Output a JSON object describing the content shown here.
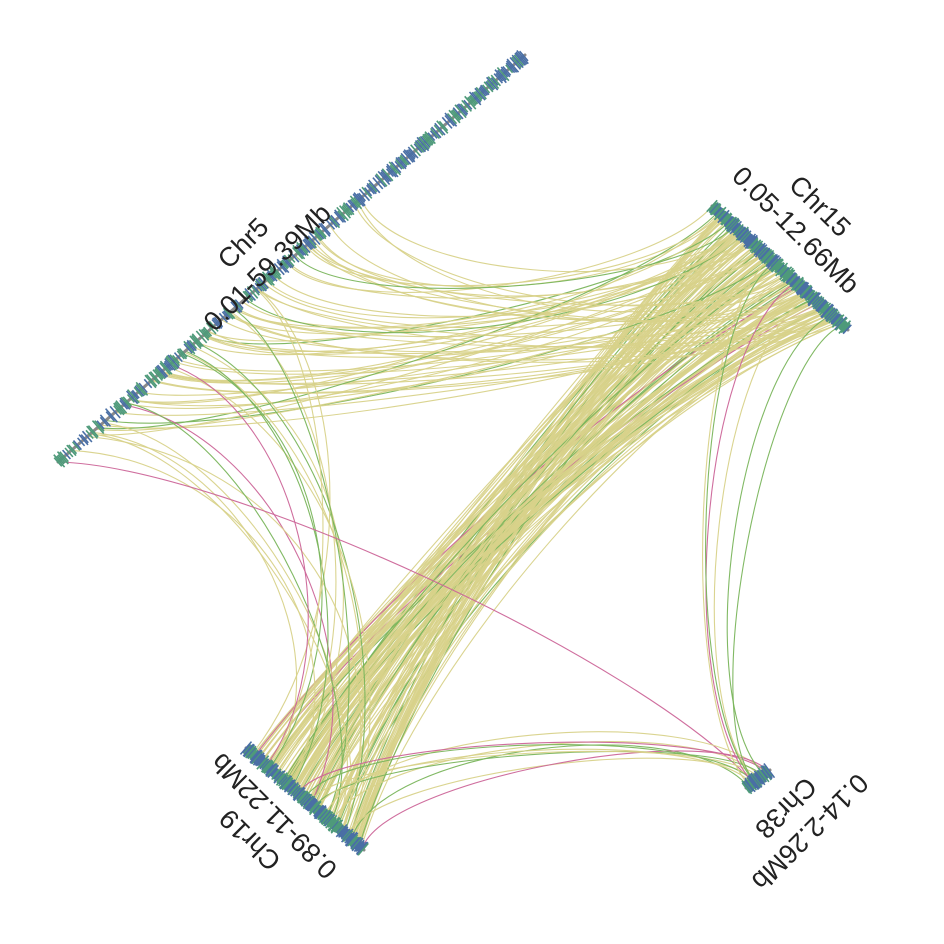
{
  "colors": {
    "background": "#ffffff",
    "axis": "#8a8a8a",
    "gene_blue": "#4a6fa5",
    "gene_green": "#4e9a7a",
    "link_yellow": "#d8d28a",
    "link_green": "#7ab55c",
    "link_pink": "#cc6699"
  },
  "chromosomes": [
    {
      "name": "Chr5",
      "range": "0.01-59.39Mb"
    },
    {
      "name": "Chr15",
      "range": "0.05-12.66Mb"
    },
    {
      "name": "Chr19",
      "range": "0.89-11.22Mb"
    },
    {
      "name": "Chr38",
      "range": "0.14-2.26Mb"
    }
  ],
  "link_categories": [
    "yellow",
    "green",
    "pink"
  ]
}
